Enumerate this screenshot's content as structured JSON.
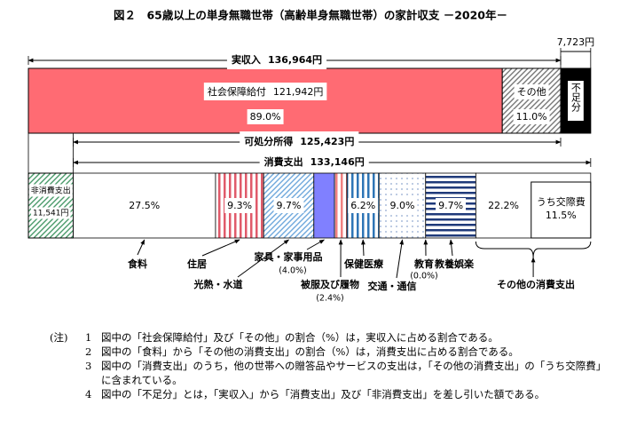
{
  "chart_data": {
    "type": "budget",
    "title": "図２　65歳以上の単身無職世帯（高齢単身無職世帯）の家計収支 －2020年－",
    "income": {
      "label": "実収入",
      "value": 136964,
      "value_label": "136,964円",
      "segments": [
        {
          "name": "社会保障給付",
          "value": 121942,
          "value_label": "121,942円",
          "share": 89.0,
          "share_label": "89.0%",
          "color": "#ff6b73"
        },
        {
          "name": "その他",
          "value": 15022,
          "share": 11.0,
          "share_label": "11.0%",
          "color": "#777777"
        }
      ],
      "deficit": {
        "name": "不足分",
        "value": 7723,
        "value_label": "7,723円",
        "color": "#000000"
      }
    },
    "disposable": {
      "label": "可処分所得",
      "value": 125423,
      "value_label": "125,423円"
    },
    "non_consumption": {
      "name": "非消費支出",
      "value": 11541,
      "value_label": "11,541円",
      "color": "#4a9a6a"
    },
    "consumption": {
      "label": "消費支出",
      "value": 133146,
      "value_label": "133,146円",
      "categories": [
        {
          "name": "食料",
          "share": 27.5,
          "share_label": "27.5%",
          "color": "#ffffff"
        },
        {
          "name": "住居",
          "share": 9.3,
          "share_label": "9.3%",
          "color": "#e05a6a"
        },
        {
          "name": "光熱・水道",
          "share": 9.7,
          "share_label": "9.7%",
          "color": "#6fa8dc"
        },
        {
          "name": "家具・家事用品",
          "share": 4.0,
          "share_label": "(4.0%)",
          "color": "#8080ff"
        },
        {
          "name": "被服及び履物",
          "share": 2.4,
          "share_label": "(2.4%)",
          "color": "#f08080"
        },
        {
          "name": "保健医療",
          "share": 6.2,
          "share_label": "6.2%",
          "color": "#2e75b6"
        },
        {
          "name": "交通・通信",
          "share": 9.0,
          "share_label": "9.0%",
          "color": "#8fa8d0"
        },
        {
          "name": "教育",
          "share": 0.0,
          "share_label": "(0.0%)",
          "color": "#ffffff"
        },
        {
          "name": "教養娯楽",
          "share": 9.7,
          "share_label": "9.7%",
          "color": "#1f3a7a"
        },
        {
          "name": "その他の消費支出",
          "share": 22.2,
          "share_label": "22.2%",
          "color": "#ffffff",
          "sub": {
            "name": "うち交際費",
            "share": 11.5,
            "share_label": "11.5%"
          }
        }
      ]
    },
    "notes": {
      "marker": "(注)",
      "items": [
        {
          "num": "1",
          "lines": [
            "図中の「社会保障給付」及び「その他」の割合（%）は，実収入に占める割合である。"
          ]
        },
        {
          "num": "2",
          "lines": [
            "図中の「食料」から「その他の消費支出」の割合（%）は，消費支出に占める割合である。"
          ]
        },
        {
          "num": "3",
          "lines": [
            "図中の「消費支出」のうち，他の世帯への贈答品やサービスの支出は，「その他の消費支出」の「うち交際費」",
            "に含まれている。"
          ]
        },
        {
          "num": "4",
          "lines": [
            "図中の「不足分」とは，「実収入」から「消費支出」及び「非消費支出」を差し引いた額である。"
          ]
        }
      ]
    }
  }
}
